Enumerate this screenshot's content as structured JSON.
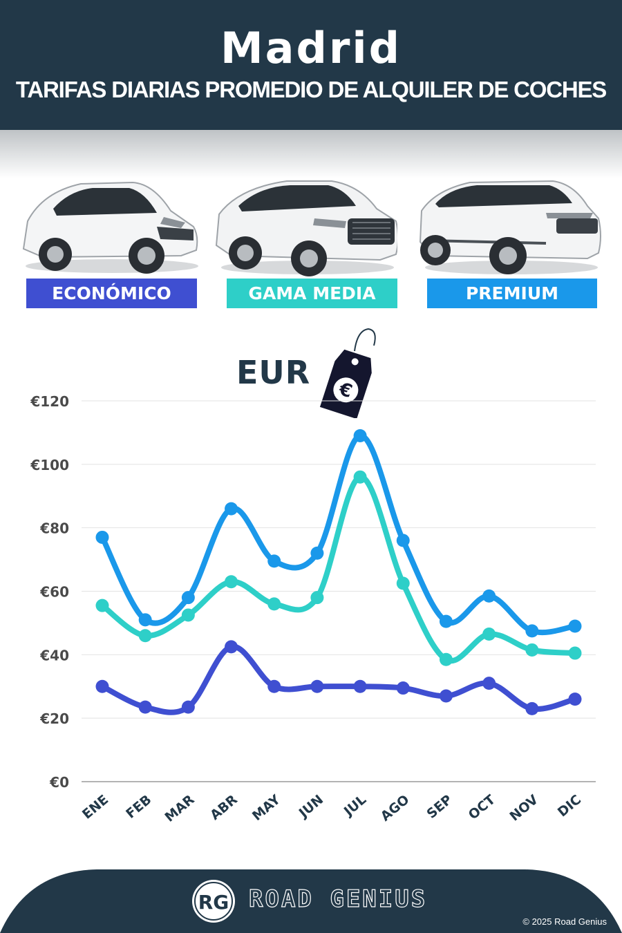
{
  "header": {
    "city": "Madrid",
    "subtitle": "TARIFAS DIARIAS PROMEDIO DE ALQUILER DE COCHES"
  },
  "categories": [
    {
      "label": "ECONÓMICO",
      "color": "#3f4fd1",
      "icon": "hatchback-car-icon"
    },
    {
      "label": "GAMA MEDIA",
      "color": "#2ecfc8",
      "icon": "suv-car-icon"
    },
    {
      "label": "PREMIUM",
      "color": "#1a98ea",
      "icon": "luxury-suv-car-icon"
    }
  ],
  "currency": {
    "label": "EUR",
    "icon": "euro-price-tag-icon"
  },
  "chart_data": {
    "type": "line",
    "x": [
      "ENE",
      "FEB",
      "MAR",
      "ABR",
      "MAY",
      "JUN",
      "JUL",
      "AGO",
      "SEP",
      "OCT",
      "NOV",
      "DIC"
    ],
    "ylim": [
      0,
      120
    ],
    "yticks": [
      "€0",
      "€20",
      "€40",
      "€60",
      "€80",
      "€100",
      "€120"
    ],
    "yticks_values": [
      0,
      20,
      40,
      60,
      80,
      100,
      120
    ],
    "grid": true,
    "series": [
      {
        "color": "#1a98ea",
        "values": [
          77,
          51,
          58,
          86,
          69.5,
          72,
          109,
          76,
          50.5,
          58.5,
          47.5,
          49
        ]
      },
      {
        "color": "#2ecfc8",
        "values": [
          55.5,
          46,
          52.5,
          63,
          56,
          58,
          96,
          62.5,
          38.5,
          46.5,
          41.5,
          40.5
        ]
      },
      {
        "color": "#3f4fd1",
        "values": [
          30,
          23.5,
          23.5,
          42.5,
          30,
          30,
          30,
          29.5,
          27,
          31,
          23,
          26
        ]
      }
    ]
  },
  "footer": {
    "logo": "RG",
    "brand": "ROAD GENIUS",
    "copyright": "© 2025 Road Genius"
  }
}
